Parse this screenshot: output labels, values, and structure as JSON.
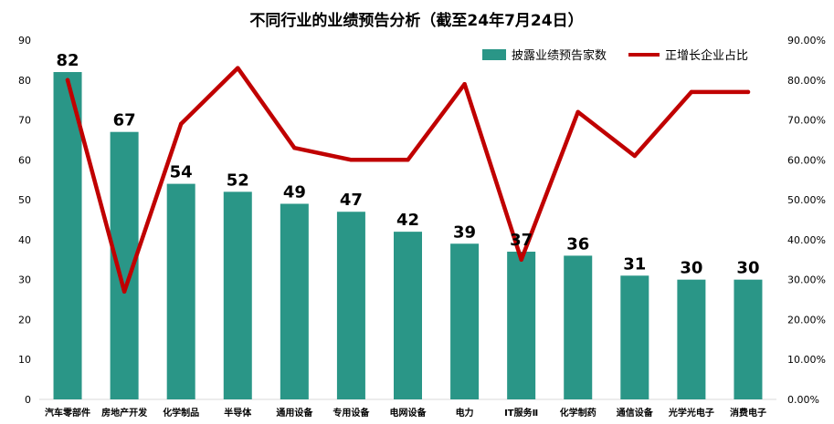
{
  "chart_data": {
    "type": "bar",
    "title": "不同行业的业绩预告分析（截至24年7月24日）",
    "categories": [
      "汽车零部件",
      "房地产开发",
      "化学制品",
      "半导体",
      "通用设备",
      "专用设备",
      "电网设备",
      "电力",
      "IT服务Ⅱ",
      "化学制药",
      "通信设备",
      "光学光电子",
      "消费电子"
    ],
    "series": [
      {
        "name": "披露业绩预告家数",
        "type": "bar",
        "axis": "left",
        "color": "#2a9687",
        "values": [
          82,
          67,
          54,
          52,
          49,
          47,
          42,
          39,
          37,
          36,
          31,
          30,
          30
        ]
      },
      {
        "name": "正增长企业占比",
        "type": "line",
        "axis": "right",
        "color": "#c00000",
        "values": [
          0.8,
          0.27,
          0.69,
          0.83,
          0.63,
          0.6,
          0.6,
          0.79,
          0.35,
          0.72,
          0.61,
          0.77,
          0.77
        ]
      }
    ],
    "data_labels": [
      "82",
      "67",
      "54",
      "52",
      "49",
      "47",
      "42",
      "39",
      "37",
      "36",
      "31",
      "30",
      "30"
    ],
    "ylim_left": [
      0,
      90
    ],
    "ylim_right": [
      0,
      0.9
    ],
    "yticks_left": [
      "0",
      "10",
      "20",
      "30",
      "40",
      "50",
      "60",
      "70",
      "80",
      "90"
    ],
    "yticks_right": [
      "0.00%",
      "10.00%",
      "20.00%",
      "30.00%",
      "40.00%",
      "50.00%",
      "60.00%",
      "70.00%",
      "80.00%",
      "90.00%"
    ],
    "legend_position": "top-right",
    "grid": false
  }
}
